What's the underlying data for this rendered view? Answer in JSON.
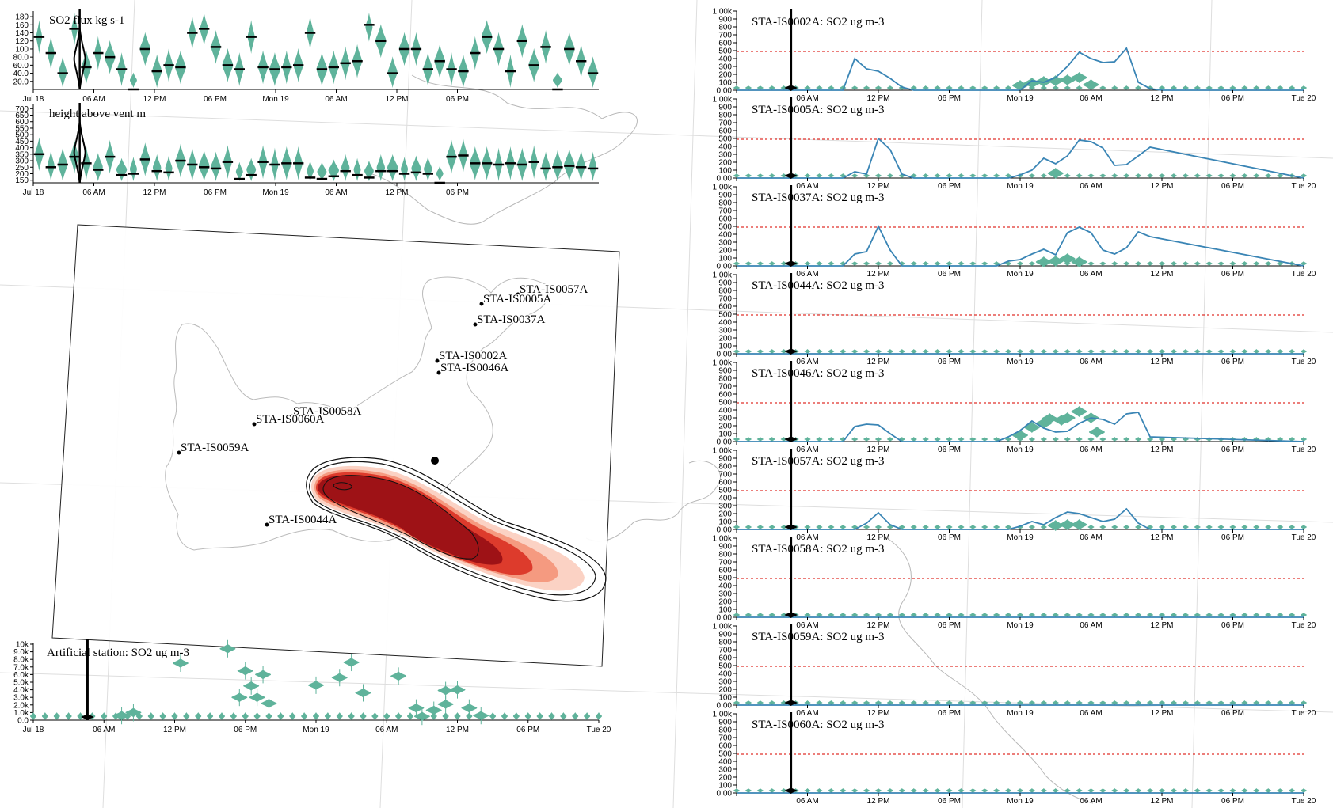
{
  "colors": {
    "violin": "#5fb39b",
    "series_line": "#3a85b5",
    "threshold": "#e0302a",
    "plume_dark": "#9e1216",
    "plume_light": "#fbd2c4",
    "coast": "#b8b8b8",
    "grid": "#dedede"
  },
  "time_ticks": [
    "Jul 18",
    "06 AM",
    "12 PM",
    "06 PM",
    "Mon 19",
    "06 AM",
    "12 PM",
    "06 PM"
  ],
  "time_ticks_full": [
    "Jul 18",
    "06 AM",
    "12 PM",
    "06 PM",
    "Mon 19",
    "06 AM",
    "12 PM",
    "06 PM",
    "Tue 20"
  ],
  "chart_data": [
    {
      "type": "violin",
      "title": "SO2 flux kg s-1",
      "yticks": [
        "20.0",
        "40.0",
        "60.0",
        "80.0",
        "100",
        "120",
        "140",
        "160",
        "180"
      ],
      "ylim": [
        0,
        190
      ],
      "x_hours": [
        0,
        56
      ],
      "medians": [
        130,
        90,
        40,
        150,
        55,
        90,
        80,
        50,
        0,
        100,
        45,
        60,
        55,
        140,
        150,
        105,
        60,
        50,
        130,
        55,
        50,
        55,
        60,
        140,
        50,
        55,
        65,
        70,
        160,
        120,
        40,
        100,
        100,
        50,
        70,
        50,
        45,
        90,
        130,
        100,
        45,
        120,
        60,
        105,
        0,
        100,
        70,
        40
      ],
      "widths": [
        0.5,
        0.6,
        0.7,
        0.5,
        0.8,
        0.6,
        0.9,
        0.7,
        0.6,
        0.9,
        0.8,
        0.7,
        0.9,
        0.6,
        0.7,
        0.8,
        0.9,
        0.7,
        0.6,
        0.8,
        0.9,
        0.7,
        0.8,
        0.6,
        0.9,
        0.8,
        0.7,
        0.8,
        0.6,
        0.9,
        0.8,
        0.9,
        0.7,
        0.8,
        0.9,
        0.6,
        0.8,
        0.7,
        0.9,
        0.8,
        0.6,
        0.8,
        0.9,
        0.7,
        0.8,
        0.9,
        0.7,
        0.8
      ],
      "highlight_hour": 4.6
    },
    {
      "type": "violin",
      "title": "height above vent m",
      "yticks": [
        "150",
        "200",
        "250",
        "300",
        "350",
        "400",
        "450",
        "500",
        "550",
        "600",
        "650",
        "700"
      ],
      "ylim": [
        130,
        720
      ],
      "x_hours": [
        0,
        56
      ],
      "medians": [
        350,
        250,
        270,
        330,
        280,
        230,
        330,
        190,
        200,
        310,
        220,
        210,
        300,
        270,
        250,
        240,
        290,
        160,
        190,
        290,
        270,
        280,
        280,
        170,
        160,
        180,
        220,
        190,
        170,
        220,
        220,
        200,
        210,
        200,
        130,
        330,
        340,
        280,
        280,
        270,
        280,
        270,
        290,
        240,
        250,
        260,
        250,
        240
      ],
      "widths": [
        0.7,
        0.6,
        0.8,
        0.7,
        0.6,
        0.8,
        0.7,
        0.9,
        0.6,
        0.8,
        0.7,
        0.6,
        0.8,
        0.7,
        0.9,
        0.8,
        0.7,
        0.6,
        0.8,
        0.7,
        0.6,
        0.8,
        0.7,
        0.6,
        0.8,
        0.9,
        0.7,
        0.6,
        0.8,
        0.7,
        0.9,
        0.6,
        0.8,
        0.7,
        0.6,
        0.8,
        0.7,
        0.9,
        0.8,
        0.6,
        0.7,
        0.8,
        0.6,
        0.7,
        0.8,
        0.9,
        0.7,
        0.6
      ],
      "highlight_hour": 4.6
    },
    {
      "type": "scatter",
      "title": "Artificial station: SO2 ug m-3",
      "yticks": [
        "0.0",
        "1.0k",
        "2.0k",
        "3.0k",
        "4.0k",
        "5.0k",
        "6.0k",
        "7.0k",
        "8.0k",
        "9.0k",
        "10k"
      ],
      "ylim": [
        0,
        10000
      ],
      "x_hours": [
        0,
        48
      ],
      "points": [
        [
          7.5,
          600
        ],
        [
          8.5,
          1000
        ],
        [
          12.5,
          7500
        ],
        [
          16.5,
          9400
        ],
        [
          17.5,
          3000
        ],
        [
          18,
          6500
        ],
        [
          18.5,
          4500
        ],
        [
          19,
          3000
        ],
        [
          19.5,
          6000
        ],
        [
          20,
          2200
        ],
        [
          24,
          4600
        ],
        [
          26,
          5600
        ],
        [
          27,
          7600
        ],
        [
          28,
          3600
        ],
        [
          31,
          5800
        ],
        [
          32.5,
          1600
        ],
        [
          33,
          500
        ],
        [
          34,
          1300
        ],
        [
          35,
          2100
        ],
        [
          35,
          3900
        ],
        [
          36,
          4000
        ],
        [
          37,
          1600
        ],
        [
          38,
          600
        ]
      ],
      "highlight_hour": 4.6
    },
    {
      "type": "line",
      "station": "STA-IS0002A",
      "title": "STA-IS0002A: SO2 ug m-3",
      "threshold": 490,
      "ylim": [
        0,
        1000
      ],
      "x": [
        0,
        9,
        10,
        11,
        12,
        13,
        14,
        15,
        24,
        25,
        26,
        27,
        28,
        29,
        30,
        31,
        32,
        33,
        34,
        35,
        36,
        48
      ],
      "y": [
        0,
        0,
        400,
        270,
        240,
        150,
        40,
        0,
        0,
        120,
        100,
        160,
        300,
        480,
        400,
        350,
        360,
        530,
        100,
        20,
        0,
        0
      ],
      "violins": [
        [
          24,
          60
        ],
        [
          25,
          90
        ],
        [
          26,
          110
        ],
        [
          27,
          120
        ],
        [
          28,
          130
        ],
        [
          29,
          160
        ],
        [
          30,
          70
        ]
      ]
    },
    {
      "type": "line",
      "station": "STA-IS0005A",
      "title": "STA-IS0005A: SO2 ug m-3",
      "threshold": 490,
      "ylim": [
        0,
        1000
      ],
      "x": [
        0,
        9,
        10,
        11,
        12,
        13,
        14,
        15,
        23,
        24,
        25,
        26,
        27,
        28,
        29,
        30,
        31,
        32,
        33,
        34,
        35,
        48
      ],
      "y": [
        0,
        0,
        80,
        50,
        500,
        360,
        50,
        0,
        0,
        40,
        100,
        250,
        180,
        280,
        480,
        460,
        380,
        160,
        170,
        280,
        390,
        0
      ],
      "violins": [
        [
          27,
          60
        ]
      ]
    },
    {
      "type": "line",
      "station": "STA-IS0037A",
      "title": "STA-IS0037A: SO2 ug m-3",
      "threshold": 490,
      "ylim": [
        0,
        1000
      ],
      "x": [
        0,
        9,
        10,
        11,
        12,
        13,
        14,
        22,
        23,
        24,
        25,
        26,
        27,
        28,
        29,
        30,
        31,
        32,
        33,
        34,
        35,
        48
      ],
      "y": [
        0,
        0,
        150,
        180,
        500,
        200,
        0,
        0,
        60,
        80,
        150,
        210,
        140,
        420,
        490,
        420,
        200,
        150,
        230,
        430,
        370,
        0
      ],
      "violins": [
        [
          26,
          50
        ],
        [
          27,
          60
        ],
        [
          28,
          90
        ],
        [
          29,
          50
        ]
      ]
    },
    {
      "type": "line",
      "station": "STA-IS0044A",
      "title": "STA-IS0044A: SO2 ug m-3",
      "threshold": 490,
      "ylim": [
        0,
        1000
      ],
      "x": [
        0,
        48
      ],
      "y": [
        0,
        0
      ],
      "violins": []
    },
    {
      "type": "line",
      "station": "STA-IS0046A",
      "title": "STA-IS0046A: SO2 ug m-3",
      "threshold": 490,
      "ylim": [
        0,
        1000
      ],
      "x": [
        0,
        9,
        10,
        11,
        12,
        13,
        14,
        22,
        23,
        24,
        25,
        26,
        27,
        28,
        29,
        30,
        31,
        32,
        33,
        34,
        35,
        48
      ],
      "y": [
        0,
        0,
        190,
        220,
        210,
        100,
        0,
        0,
        60,
        140,
        260,
        170,
        120,
        130,
        230,
        300,
        280,
        220,
        350,
        370,
        60,
        0
      ],
      "violins": [
        [
          24,
          80
        ],
        [
          25,
          180
        ],
        [
          26,
          230
        ],
        [
          26.5,
          290
        ],
        [
          27.5,
          270
        ],
        [
          28,
          300
        ],
        [
          29,
          380
        ],
        [
          30,
          300
        ],
        [
          30.5,
          120
        ]
      ]
    },
    {
      "type": "line",
      "station": "STA-IS0057A",
      "title": "STA-IS0057A: SO2 ug m-3",
      "threshold": 490,
      "ylim": [
        0,
        1000
      ],
      "x": [
        0,
        10,
        11,
        12,
        13,
        14,
        23,
        24,
        25,
        26,
        27,
        28,
        29,
        30,
        31,
        32,
        33,
        34,
        35,
        48
      ],
      "y": [
        0,
        0,
        80,
        210,
        60,
        0,
        0,
        40,
        100,
        60,
        150,
        220,
        200,
        150,
        100,
        130,
        260,
        80,
        0,
        0
      ],
      "violins": [
        [
          27,
          50
        ],
        [
          28,
          60
        ],
        [
          29,
          60
        ]
      ]
    },
    {
      "type": "line",
      "station": "STA-IS0058A",
      "title": "STA-IS0058A: SO2 ug m-3",
      "threshold": 490,
      "ylim": [
        0,
        1000
      ],
      "x": [
        0,
        48
      ],
      "y": [
        0,
        0
      ],
      "violins": []
    },
    {
      "type": "line",
      "station": "STA-IS0059A",
      "title": "STA-IS0059A: SO2 ug m-3",
      "threshold": 490,
      "ylim": [
        0,
        1000
      ],
      "x": [
        0,
        48
      ],
      "y": [
        0,
        0
      ],
      "violins": []
    },
    {
      "type": "line",
      "station": "STA-IS0060A",
      "title": "STA-IS0060A: SO2 ug m-3",
      "threshold": 490,
      "ylim": [
        0,
        1000
      ],
      "x": [
        0,
        48
      ],
      "y": [
        0,
        0
      ],
      "violins": []
    }
  ],
  "station_yticks": [
    "0.00",
    "100",
    "200",
    "300",
    "400",
    "500",
    "600",
    "700",
    "800",
    "900",
    "1.00k"
  ],
  "map": {
    "stations": [
      {
        "name": "STA-IS0057A"
      },
      {
        "name": "STA-IS0005A"
      },
      {
        "name": "STA-IS0037A"
      },
      {
        "name": "STA-IS0002A"
      },
      {
        "name": "STA-IS0046A"
      },
      {
        "name": "STA-IS0058A"
      },
      {
        "name": "STA-IS0060A"
      },
      {
        "name": "STA-IS0059A"
      },
      {
        "name": "STA-IS0044A"
      }
    ]
  }
}
